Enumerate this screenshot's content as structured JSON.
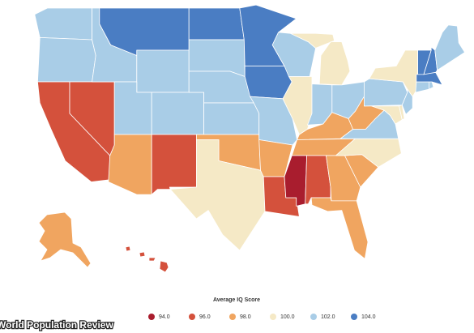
{
  "map": {
    "legend_title": "Average IQ Score",
    "legend": [
      {
        "value": 94,
        "label": "94.0",
        "color": "#a91d2e"
      },
      {
        "value": 96,
        "label": "96.0",
        "color": "#d4513c"
      },
      {
        "value": 98,
        "label": "98.0",
        "color": "#f0a560"
      },
      {
        "value": 100,
        "label": "100.0",
        "color": "#f5e9c6"
      },
      {
        "value": 102,
        "label": "102.0",
        "color": "#a9cde7"
      },
      {
        "value": 104,
        "label": "104.0",
        "color": "#4a7dc3"
      }
    ],
    "region_values": [
      102,
      102,
      96,
      96,
      102,
      104,
      102,
      102,
      102,
      98,
      96,
      104,
      102,
      102,
      102,
      98,
      100,
      104,
      104,
      102,
      98,
      96,
      102,
      100,
      100,
      102,
      102,
      98,
      98,
      94,
      96,
      98,
      98,
      98,
      100,
      102,
      98,
      100,
      100,
      102,
      100,
      102,
      102,
      102,
      104,
      104,
      104,
      102,
      98,
      96
    ]
  },
  "source": "World Population Review"
}
